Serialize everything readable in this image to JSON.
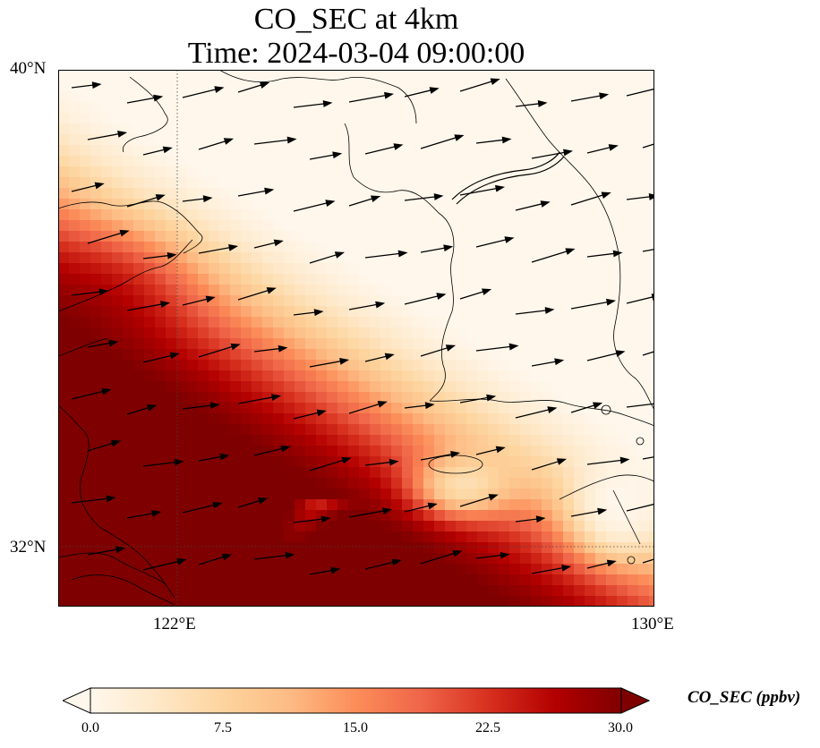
{
  "title": {
    "line1": "CO_SEC at 4km",
    "line2": "Time: 2024-03-04 09:00:00"
  },
  "map": {
    "lat_range": [
      31.2,
      40.0
    ],
    "lon_range": [
      120.0,
      130.0
    ],
    "lat_ticks": [
      {
        "value": 40,
        "label": "40°N"
      },
      {
        "value": 32,
        "label": "32°N"
      }
    ],
    "lon_ticks": [
      {
        "value": 122,
        "label": "122°E"
      },
      {
        "value": 130,
        "label": "130°E"
      }
    ],
    "gridlines": "dotted at 122°E and 32°N",
    "field_description": "CO_SEC concentration, low (pale) in the north-east, saturated (dark red) over the central Yellow Sea and East China Sea",
    "wind_vectors": "black arrows, predominantly westerly-to-west-south-westerly flow"
  },
  "colorbar": {
    "colormap": "OrRd",
    "min": 0.0,
    "max": 30.0,
    "extend": "both",
    "ticks": [
      "0.0",
      "7.5",
      "15.0",
      "22.5",
      "30.0"
    ],
    "label": "CO_SEC (ppbv)",
    "colors": [
      "#fff7ec",
      "#fee8c8",
      "#fdd49e",
      "#fdbb84",
      "#fc8d59",
      "#ef6548",
      "#d7301f",
      "#b30000",
      "#7f0000"
    ]
  }
}
